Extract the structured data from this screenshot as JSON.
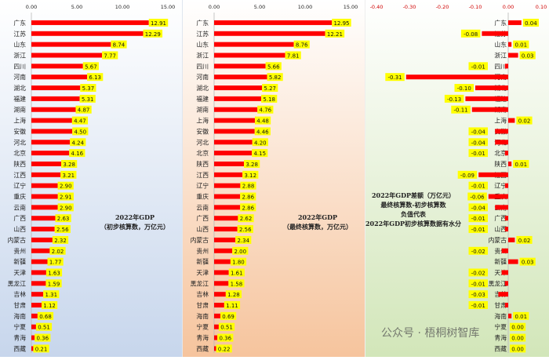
{
  "chart_data": [
    {
      "type": "bar",
      "orientation": "horizontal",
      "categories": [
        "广东",
        "江苏",
        "山东",
        "浙江",
        "四川",
        "河南",
        "湖北",
        "福建",
        "湖南",
        "上海",
        "安徽",
        "河北",
        "北京",
        "陕西",
        "江西",
        "辽宁",
        "重庆",
        "云南",
        "广西",
        "山西",
        "内蒙古",
        "贵州",
        "新疆",
        "天津",
        "黑龙江",
        "吉林",
        "甘肃",
        "海南",
        "宁夏",
        "青海",
        "西藏"
      ],
      "values": [
        12.91,
        12.29,
        8.74,
        7.77,
        5.67,
        6.13,
        5.37,
        5.31,
        4.87,
        4.47,
        4.5,
        4.24,
        4.16,
        3.28,
        3.21,
        2.9,
        2.91,
        2.9,
        2.63,
        2.56,
        2.32,
        2.02,
        1.77,
        1.63,
        1.59,
        1.31,
        1.12,
        0.68,
        0.51,
        0.36,
        0.21
      ],
      "xlim": [
        0,
        15
      ],
      "xticks": [
        "0.00",
        "5.00",
        "10.00",
        "15.00"
      ],
      "note_lines": [
        "2022年GDP",
        "（初步核算数，万亿元）"
      ],
      "bar_color": "#ff0000",
      "label_bg": "#ffff00"
    },
    {
      "type": "bar",
      "orientation": "horizontal",
      "categories": [
        "广东",
        "江苏",
        "山东",
        "浙江",
        "四川",
        "河南",
        "湖北",
        "福建",
        "湖南",
        "上海",
        "安徽",
        "河北",
        "北京",
        "陕西",
        "江西",
        "辽宁",
        "重庆",
        "云南",
        "广西",
        "山西",
        "内蒙古",
        "贵州",
        "新疆",
        "天津",
        "黑龙江",
        "吉林",
        "甘肃",
        "海南",
        "宁夏",
        "青海",
        "西藏"
      ],
      "values": [
        12.95,
        12.21,
        8.76,
        7.81,
        5.66,
        5.82,
        5.27,
        5.18,
        4.76,
        4.48,
        4.46,
        4.2,
        4.15,
        3.28,
        3.12,
        2.88,
        2.86,
        2.86,
        2.62,
        2.56,
        2.34,
        2.0,
        1.8,
        1.61,
        1.58,
        1.28,
        1.11,
        0.69,
        0.51,
        0.36,
        0.22
      ],
      "xlim": [
        0,
        15
      ],
      "xticks": [
        "0.00",
        "5.00",
        "10.00",
        "15.00"
      ],
      "note_lines": [
        "2022年GDP",
        "（最终核算数，万亿元）"
      ],
      "bar_color": "#ff0000",
      "label_bg": "#ffff00"
    },
    {
      "type": "bar",
      "orientation": "horizontal",
      "categories": [
        "广东",
        "江苏",
        "山东",
        "浙江",
        "四川",
        "河南",
        "湖北",
        "福建",
        "湖南",
        "上海",
        "安徽",
        "河北",
        "北京",
        "陕西",
        "江西",
        "辽宁",
        "重庆",
        "云南",
        "广西",
        "山西",
        "内蒙古",
        "贵州",
        "新疆",
        "天津",
        "黑龙江",
        "吉林",
        "甘肃",
        "海南",
        "宁夏",
        "青海",
        "西藏"
      ],
      "values": [
        0.04,
        -0.08,
        0.01,
        0.03,
        -0.01,
        -0.31,
        -0.1,
        -0.13,
        -0.11,
        0.02,
        -0.04,
        -0.04,
        -0.01,
        0.01,
        -0.09,
        -0.01,
        -0.06,
        -0.04,
        -0.01,
        -0.01,
        0.02,
        -0.02,
        0.03,
        -0.02,
        -0.01,
        -0.03,
        -0.01,
        0.01,
        0.0,
        0.0,
        0.0
      ],
      "labels": [
        "0.04",
        "-0.08",
        "0.01",
        "0.03",
        "-0.01",
        "-0.31",
        "-0.10",
        "-0.13",
        "-0.11",
        "0.02",
        "-0.04",
        "-0.04",
        "-0.01",
        "0.01",
        "-0.09",
        "-0.01",
        "-0.06",
        "-0.04",
        "-0.01",
        "-0.01",
        "0.02",
        "-0.02",
        "0.03",
        "-0.02",
        "-0.01",
        "-0.03",
        "-0.01",
        "0.01",
        "0.00",
        "0.00",
        "0.00"
      ],
      "xlim": [
        -0.4,
        0.1
      ],
      "xticks": [
        "-0.40",
        "-0.30",
        "-0.20",
        "-0.10",
        "0.00",
        "0.10"
      ],
      "note_lines": [
        "2022年GDP差额（万亿元）",
        "最终核算数-初步核算数",
        "",
        "负值代表",
        "2022年GDP初步核算数据有水分"
      ],
      "bar_color": "#ff0000",
      "label_bg": "#ffff00"
    }
  ],
  "watermark": "公众号 · 梧桐树智库"
}
